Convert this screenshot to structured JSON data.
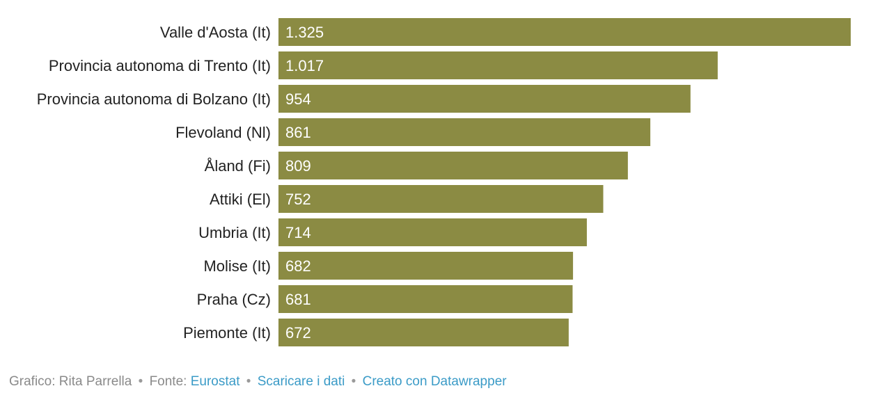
{
  "colors": {
    "bar": "#8b8b43",
    "category_text": "#222222",
    "value_text": "#ffffff",
    "footer_text": "#8a8a8a",
    "footer_link": "#3b9bc7"
  },
  "chart_data": {
    "type": "bar",
    "orientation": "horizontal",
    "title": "",
    "xlabel": "",
    "ylabel": "",
    "grid": false,
    "categories": [
      "Valle d'Aosta (It)",
      "Provincia autonoma di Trento (It)",
      "Provincia autonoma di Bolzano (It)",
      "Flevoland (Nl)",
      "Åland (Fi)",
      "Attiki (El)",
      "Umbria (It)",
      "Molise (It)",
      "Praha (Cz)",
      "Piemonte (It)"
    ],
    "values": [
      1325,
      1017,
      954,
      861,
      809,
      752,
      714,
      682,
      681,
      672
    ],
    "value_labels": [
      "1.325",
      "1.017",
      "954",
      "861",
      "809",
      "752",
      "714",
      "682",
      "681",
      "672"
    ],
    "xlim": [
      0,
      1325
    ]
  },
  "footer": {
    "prefix": "Grafico: Rita Parrella",
    "separator": "•",
    "source_label": "Fonte:",
    "source_link": "Eurostat",
    "download_link": "Scaricare i dati",
    "made_with_link": "Creato con Datawrapper"
  }
}
